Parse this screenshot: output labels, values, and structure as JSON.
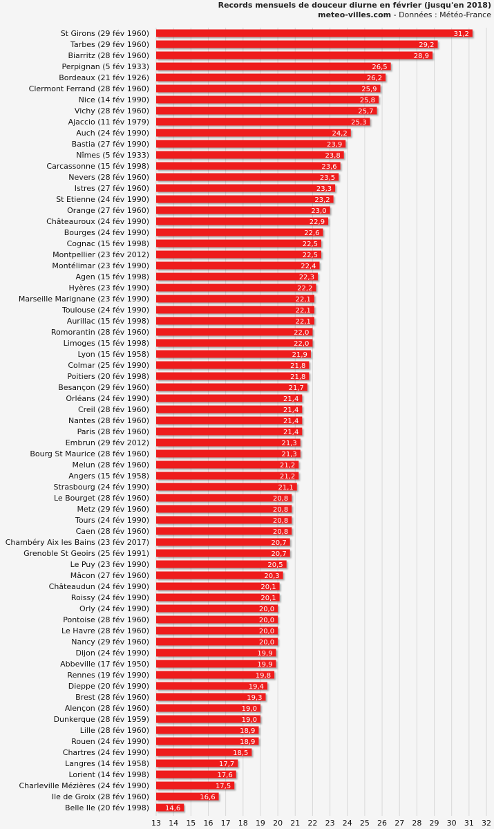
{
  "header": {
    "title": "Records mensuels de douceur diurne en février (jusqu'en 2018)",
    "site": "meteo-villes.com",
    "source": " - Données : Météo-France"
  },
  "chart_data": {
    "type": "bar",
    "orientation": "horizontal",
    "title": "Records mensuels de douceur diurne en février (jusqu'en 2018)",
    "xlabel": "",
    "ylabel": "",
    "xlim": [
      13,
      32
    ],
    "ticks": [
      13,
      14,
      15,
      16,
      17,
      18,
      19,
      20,
      21,
      22,
      23,
      24,
      25,
      26,
      27,
      28,
      29,
      30,
      31,
      32
    ],
    "bar_color": "#ee1c1c",
    "categories": [
      "St Girons (29 fév 1960)",
      "Tarbes (29 fév 1960)",
      "Biarritz (28 fév 1960)",
      "Perpignan (5 fév 1933)",
      "Bordeaux (21 fév 1926)",
      "Clermont Ferrand (28 fév 1960)",
      "Nice (14 fév 1990)",
      "Vichy (28 fév 1960)",
      "Ajaccio (11 fév 1979)",
      "Auch (24 fév 1990)",
      "Bastia (27 fév 1990)",
      "Nîmes (5 fév 1933)",
      "Carcassonne (15 fév 1998)",
      "Nevers (28 fév 1960)",
      "Istres (27 fév 1960)",
      "St Etienne (24 fév 1990)",
      "Orange (27 fév 1960)",
      "Châteauroux (24 fév 1990)",
      "Bourges (24 fév 1990)",
      "Cognac (15 fév 1998)",
      "Montpellier (23 fév 2012)",
      "Montélimar (23 fév 1990)",
      "Agen (15 fév 1998)",
      "Hyères (23 fév 1990)",
      "Marseille Marignane (23 fév 1990)",
      "Toulouse (24 fév 1990)",
      "Aurillac (15 fév 1998)",
      "Romorantin (28 fév 1960)",
      "Limoges (15 fév 1998)",
      "Lyon (15 fév 1958)",
      "Colmar (25 fév 1990)",
      "Poitiers (20 fév 1998)",
      "Besançon (29 fév 1960)",
      "Orléans (24 fév 1990)",
      "Creil (28 fév 1960)",
      "Nantes (28 fév 1960)",
      "Paris (28 fév 1960)",
      "Embrun (29 fév 2012)",
      "Bourg St Maurice (28 fév 1960)",
      "Melun (28 fév 1960)",
      "Angers (15 fév 1958)",
      "Strasbourg (24 fév 1990)",
      "Le Bourget (28 fév 1960)",
      "Metz (29 fév 1960)",
      "Tours (24 fév 1990)",
      "Caen (28 fév 1960)",
      "Chambéry Aix les Bains (23 fév 2017)",
      "Grenoble St Geoirs (25 fév 1991)",
      "Le Puy (23 fév 1990)",
      "Mâcon (27 fév 1960)",
      "Châteaudun (24 fév 1990)",
      "Roissy (24 fév 1990)",
      "Orly (24 fév 1990)",
      "Pontoise (28 fév 1960)",
      "Le Havre (28 fév 1960)",
      "Nancy (29 fév 1960)",
      "Dijon (24 fév 1990)",
      "Abbeville (17 fév 1950)",
      "Rennes (19 fév 1990)",
      "Dieppe (20 fév 1990)",
      "Brest (28 fév 1960)",
      "Alençon (28 fév 1960)",
      "Dunkerque (28 fév 1959)",
      "Lille (28 fév 1960)",
      "Rouen (24 fév 1990)",
      "Chartres (24 fév 1990)",
      "Langres (14 fév 1958)",
      "Lorient (14 fév 1998)",
      "Charleville Mézières (24 fév 1990)",
      "Ile de Groix (28 fév 1960)",
      "Belle Ile (20 fév 1998)"
    ],
    "values": [
      31.2,
      29.2,
      28.9,
      26.5,
      26.2,
      25.9,
      25.8,
      25.7,
      25.3,
      24.2,
      23.9,
      23.8,
      23.6,
      23.5,
      23.3,
      23.2,
      23.0,
      22.9,
      22.6,
      22.5,
      22.5,
      22.4,
      22.3,
      22.2,
      22.1,
      22.1,
      22.1,
      22.0,
      22.0,
      21.9,
      21.8,
      21.8,
      21.7,
      21.4,
      21.4,
      21.4,
      21.4,
      21.3,
      21.3,
      21.2,
      21.2,
      21.1,
      20.8,
      20.8,
      20.8,
      20.8,
      20.7,
      20.7,
      20.5,
      20.3,
      20.1,
      20.1,
      20.0,
      20.0,
      20.0,
      20.0,
      19.9,
      19.9,
      19.8,
      19.4,
      19.3,
      19.0,
      19.0,
      18.9,
      18.9,
      18.5,
      17.7,
      17.6,
      17.5,
      16.6,
      14.6
    ],
    "value_labels": [
      "31,2",
      "29,2",
      "28,9",
      "26,5",
      "26,2",
      "25,9",
      "25,8",
      "25,7",
      "25,3",
      "24,2",
      "23,9",
      "23,8",
      "23,6",
      "23,5",
      "23,3",
      "23,2",
      "23,0",
      "22,9",
      "22,6",
      "22,5",
      "22,5",
      "22,4",
      "22,3",
      "22,2",
      "22,1",
      "22,1",
      "22,1",
      "22,0",
      "22,0",
      "21,9",
      "21,8",
      "21,8",
      "21,7",
      "21,4",
      "21,4",
      "21,4",
      "21,4",
      "21,3",
      "21,3",
      "21,2",
      "21,2",
      "21,1",
      "20,8",
      "20,8",
      "20,8",
      "20,8",
      "20,7",
      "20,7",
      "20,5",
      "20,3",
      "20,1",
      "20,1",
      "20,0",
      "20,0",
      "20,0",
      "20,0",
      "19,9",
      "19,9",
      "19,8",
      "19,4",
      "19,3",
      "19,0",
      "19,0",
      "18,9",
      "18,9",
      "18,5",
      "17,7",
      "17,6",
      "17,5",
      "16,6",
      "14,6"
    ]
  }
}
